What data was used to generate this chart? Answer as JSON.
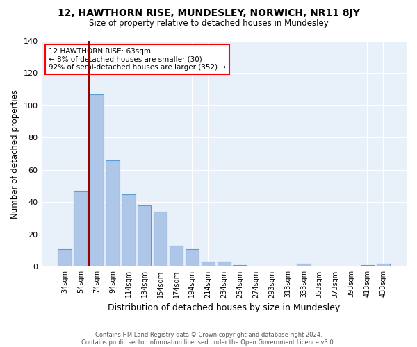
{
  "title": "12, HAWTHORN RISE, MUNDESLEY, NORWICH, NR11 8JY",
  "subtitle": "Size of property relative to detached houses in Mundesley",
  "xlabel": "Distribution of detached houses by size in Mundesley",
  "ylabel": "Number of detached properties",
  "categories": [
    "34sqm",
    "54sqm",
    "74sqm",
    "94sqm",
    "114sqm",
    "134sqm",
    "154sqm",
    "174sqm",
    "194sqm",
    "214sqm",
    "234sqm",
    "254sqm",
    "274sqm",
    "293sqm",
    "313sqm",
    "333sqm",
    "353sqm",
    "373sqm",
    "393sqm",
    "413sqm",
    "433sqm"
  ],
  "values": [
    11,
    47,
    107,
    66,
    45,
    38,
    34,
    13,
    11,
    3,
    3,
    1,
    0,
    0,
    0,
    2,
    0,
    0,
    0,
    1,
    2
  ],
  "bar_color": "#aec6e8",
  "bar_edge_color": "#5a9fd4",
  "vline_x_pos": 1.5,
  "vline_color": "#990000",
  "annotation_text": "12 HAWTHORN RISE: 63sqm\n← 8% of detached houses are smaller (30)\n92% of semi-detached houses are larger (352) →",
  "annotation_box_color": "white",
  "annotation_box_edge": "red",
  "footer_line1": "Contains HM Land Registry data © Crown copyright and database right 2024.",
  "footer_line2": "Contains public sector information licensed under the Open Government Licence v3.0.",
  "background_color": "#e8f0fa",
  "ylim": [
    0,
    140
  ],
  "yticks": [
    0,
    20,
    40,
    60,
    80,
    100,
    120,
    140
  ]
}
